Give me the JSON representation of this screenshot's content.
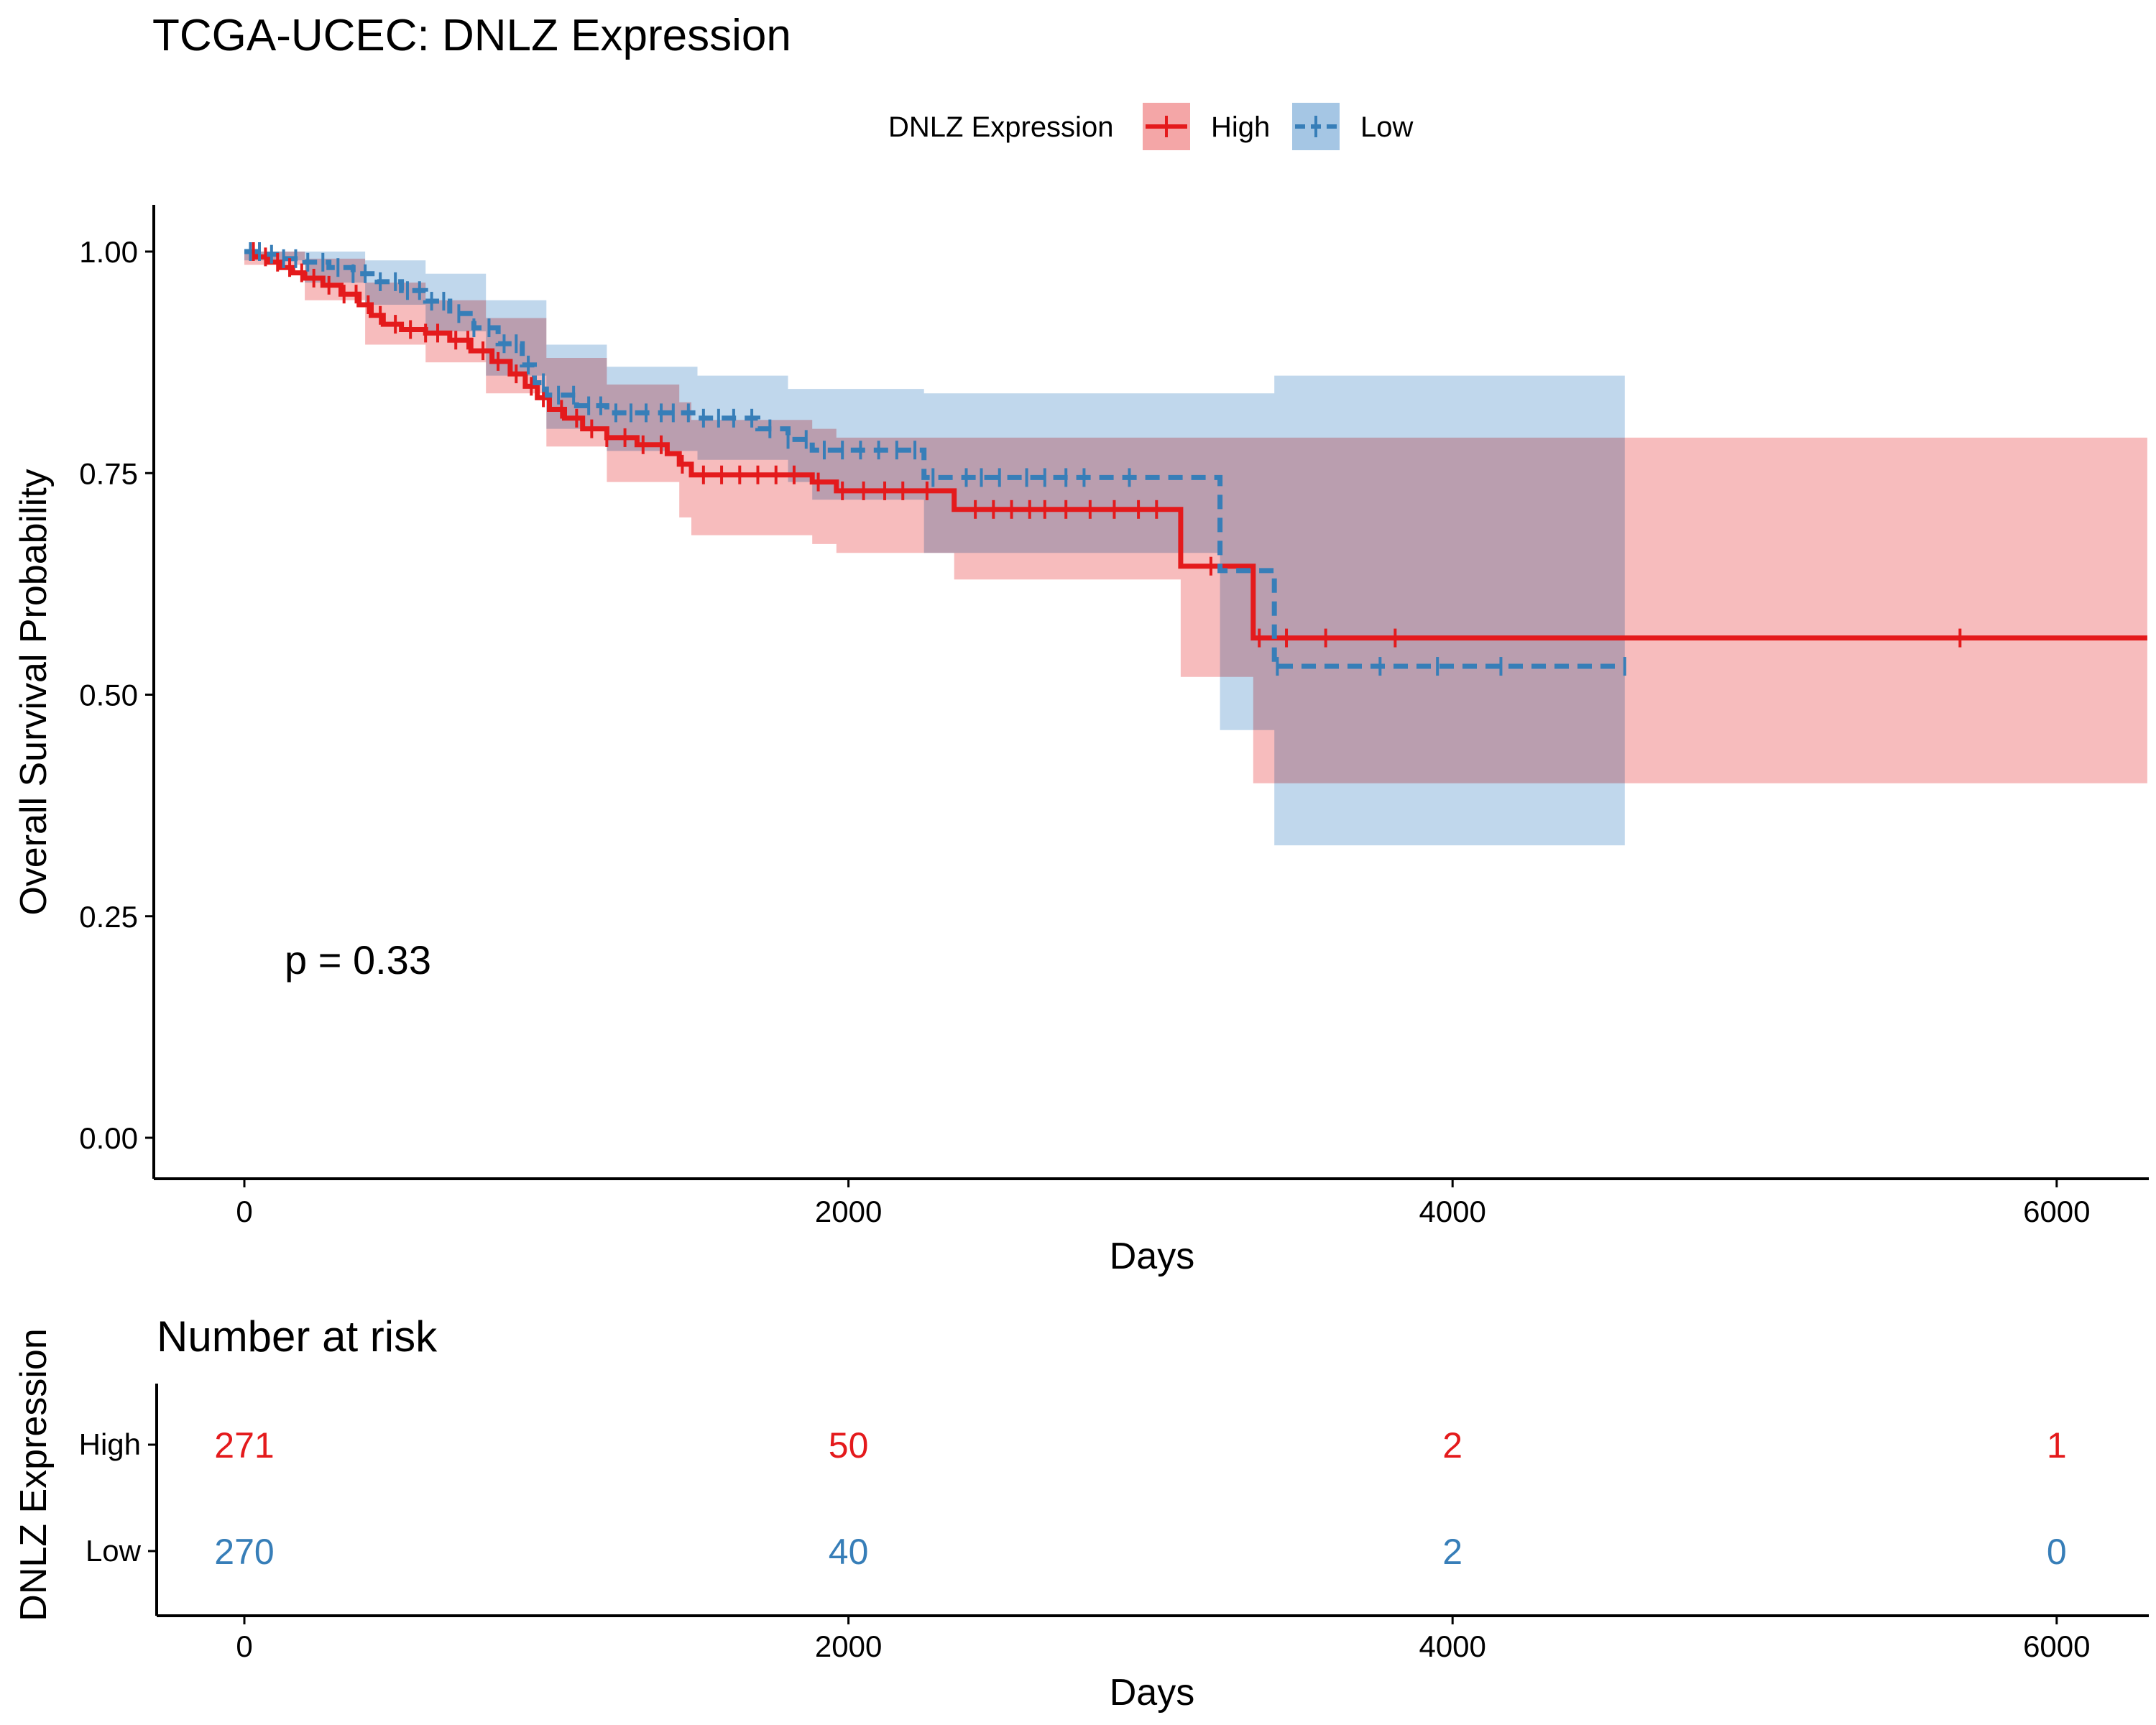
{
  "colors": {
    "high": "#E41A1C",
    "low": "#377EB8",
    "high_band": "#F4A6A7",
    "low_band": "#A5C6E4"
  },
  "chart_data": {
    "type": "line",
    "title": "TCGA-UCEC: DNLZ Expression",
    "legend": {
      "title": "DNLZ Expression",
      "position": "top",
      "entries": [
        "High",
        "Low"
      ]
    },
    "xlabel": "Days",
    "ylabel": "Overall Survival Probability",
    "xlim": [
      -300,
      6300
    ],
    "ylim": [
      -0.05,
      1.05
    ],
    "x_ticks": [
      "0",
      "2000",
      "4000",
      "6000"
    ],
    "y_ticks": [
      "0.00",
      "0.25",
      "0.50",
      "0.75",
      "1.00"
    ],
    "grid": false,
    "annotation": "p = 0.33",
    "series": [
      {
        "name": "High",
        "line_style": "solid",
        "steps": [
          [
            0,
            1.0
          ],
          [
            40,
            0.994
          ],
          [
            80,
            0.988
          ],
          [
            120,
            0.982
          ],
          [
            160,
            0.976
          ],
          [
            200,
            0.97
          ],
          [
            260,
            0.962
          ],
          [
            320,
            0.952
          ],
          [
            380,
            0.94
          ],
          [
            420,
            0.928
          ],
          [
            460,
            0.918
          ],
          [
            520,
            0.912
          ],
          [
            600,
            0.908
          ],
          [
            680,
            0.9
          ],
          [
            750,
            0.888
          ],
          [
            820,
            0.876
          ],
          [
            880,
            0.862
          ],
          [
            930,
            0.848
          ],
          [
            970,
            0.835
          ],
          [
            1010,
            0.822
          ],
          [
            1060,
            0.812
          ],
          [
            1120,
            0.8
          ],
          [
            1200,
            0.79
          ],
          [
            1300,
            0.782
          ],
          [
            1400,
            0.772
          ],
          [
            1440,
            0.76
          ],
          [
            1480,
            0.748
          ],
          [
            1880,
            0.74
          ],
          [
            1960,
            0.73
          ],
          [
            2350,
            0.709
          ],
          [
            3100,
            0.645
          ],
          [
            3340,
            0.564
          ],
          [
            6300,
            0.564
          ]
        ],
        "censor_times": [
          30,
          70,
          110,
          150,
          190,
          230,
          280,
          330,
          370,
          410,
          450,
          500,
          550,
          600,
          640,
          700,
          740,
          790,
          840,
          900,
          950,
          990,
          1050,
          1100,
          1150,
          1200,
          1260,
          1320,
          1380,
          1450,
          1520,
          1580,
          1640,
          1700,
          1760,
          1820,
          1900,
          1980,
          2050,
          2120,
          2180,
          2260,
          2420,
          2480,
          2540,
          2600,
          2650,
          2720,
          2800,
          2880,
          2960,
          3020,
          3200,
          3360,
          3450,
          3580,
          3810,
          5680
        ],
        "ci_band": [
          [
            0,
            0.985,
            1.0
          ],
          [
            200,
            0.945,
            0.992
          ],
          [
            400,
            0.895,
            0.965
          ],
          [
            600,
            0.875,
            0.945
          ],
          [
            800,
            0.84,
            0.925
          ],
          [
            1000,
            0.78,
            0.88
          ],
          [
            1200,
            0.74,
            0.85
          ],
          [
            1440,
            0.7,
            0.83
          ],
          [
            1480,
            0.68,
            0.81
          ],
          [
            1880,
            0.67,
            0.8
          ],
          [
            1960,
            0.66,
            0.79
          ],
          [
            2350,
            0.63,
            0.79
          ],
          [
            3100,
            0.52,
            0.79
          ],
          [
            3340,
            0.4,
            0.79
          ],
          [
            6300,
            0.4,
            0.79
          ]
        ]
      },
      {
        "name": "Low",
        "line_style": "dashed",
        "steps": [
          [
            0,
            1.0
          ],
          [
            60,
            0.997
          ],
          [
            120,
            0.992
          ],
          [
            200,
            0.988
          ],
          [
            280,
            0.982
          ],
          [
            360,
            0.975
          ],
          [
            440,
            0.966
          ],
          [
            520,
            0.956
          ],
          [
            600,
            0.944
          ],
          [
            680,
            0.93
          ],
          [
            760,
            0.914
          ],
          [
            840,
            0.896
          ],
          [
            920,
            0.872
          ],
          [
            960,
            0.852
          ],
          [
            1000,
            0.838
          ],
          [
            1100,
            0.826
          ],
          [
            1200,
            0.818
          ],
          [
            1500,
            0.812
          ],
          [
            1700,
            0.8
          ],
          [
            1800,
            0.788
          ],
          [
            1880,
            0.776
          ],
          [
            2250,
            0.745
          ],
          [
            3230,
            0.64
          ],
          [
            3410,
            0.532
          ],
          [
            4570,
            0.532
          ]
        ],
        "censor_times": [
          20,
          50,
          90,
          130,
          170,
          210,
          260,
          310,
          360,
          400,
          450,
          500,
          540,
          580,
          620,
          660,
          710,
          760,
          810,
          860,
          900,
          940,
          990,
          1040,
          1090,
          1140,
          1180,
          1230,
          1280,
          1330,
          1380,
          1420,
          1470,
          1520,
          1570,
          1620,
          1680,
          1740,
          1800,
          1860,
          1920,
          1980,
          2040,
          2100,
          2160,
          2220,
          2280,
          2390,
          2440,
          2500,
          2590,
          2650,
          2720,
          2780,
          2930,
          3420,
          3760,
          3950,
          4160,
          4570
        ],
        "ci_band": [
          [
            0,
            0.99,
            1.0
          ],
          [
            200,
            0.965,
            1.0
          ],
          [
            400,
            0.94,
            0.99
          ],
          [
            600,
            0.91,
            0.975
          ],
          [
            800,
            0.86,
            0.945
          ],
          [
            1000,
            0.8,
            0.895
          ],
          [
            1200,
            0.775,
            0.87
          ],
          [
            1500,
            0.765,
            0.86
          ],
          [
            1800,
            0.74,
            0.845
          ],
          [
            1880,
            0.72,
            0.845
          ],
          [
            2250,
            0.66,
            0.84
          ],
          [
            3230,
            0.46,
            0.84
          ],
          [
            3410,
            0.33,
            0.86
          ],
          [
            4570,
            0.33,
            0.86
          ]
        ]
      }
    ]
  },
  "risk_table": {
    "title": "Number at risk",
    "ylabel": "DNLZ Expression",
    "xlabel": "Days",
    "x_ticks": [
      "0",
      "2000",
      "4000",
      "6000"
    ],
    "rows": [
      {
        "name": "High",
        "counts": [
          "271",
          "50",
          "2",
          "1"
        ]
      },
      {
        "name": "Low",
        "counts": [
          "270",
          "40",
          "2",
          "0"
        ]
      }
    ]
  }
}
